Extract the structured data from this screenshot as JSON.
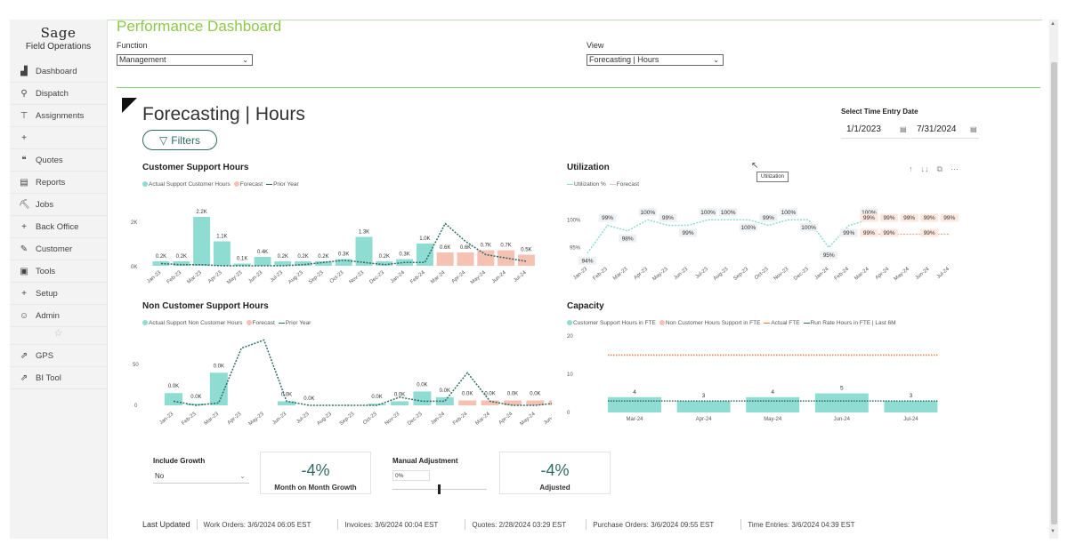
{
  "sidebar": {
    "brand": "Sage",
    "subtitle": "Field Operations",
    "items": [
      {
        "label": "Dashboard",
        "icon": "chart-icon"
      },
      {
        "label": "Dispatch",
        "icon": "pin-icon"
      },
      {
        "label": "Assignments",
        "icon": "thumbtack-icon"
      },
      {
        "label": "",
        "icon": "plus-icon"
      },
      {
        "label": "Quotes",
        "icon": "quote-icon"
      },
      {
        "label": "Reports",
        "icon": "report-icon"
      },
      {
        "label": "Jobs",
        "icon": "jobs-icon"
      },
      {
        "label": "Back Office",
        "icon": "plus-icon"
      },
      {
        "label": "Customer",
        "icon": "customer-icon"
      },
      {
        "label": "Tools",
        "icon": "toolbox-icon"
      },
      {
        "label": "Setup",
        "icon": "plus-icon"
      },
      {
        "label": "Admin",
        "icon": "users-icon"
      }
    ],
    "items2": [
      {
        "label": "GPS",
        "icon": "external-link-icon"
      },
      {
        "label": "BI Tool",
        "icon": "external-link-icon"
      }
    ]
  },
  "header": {
    "title": "Performance Dashboard",
    "function_label": "Function",
    "function_value": "Management",
    "view_label": "View",
    "view_value": "Forecasting | Hours"
  },
  "report": {
    "title": "Forecasting | Hours",
    "filters_label": "Filters",
    "date_label": "Select Time Entry Date",
    "date_start": "1/1/2023",
    "date_end": "7/31/2024",
    "tooltip": "Utilization"
  },
  "charts": {
    "csh": {
      "title": "Customer Support Hours",
      "legend": [
        "Actual Support Customer Hours",
        "Forecast",
        "Prior Year"
      ],
      "y_ticks": [
        "2K",
        "0K"
      ]
    },
    "util": {
      "title": "Utilization",
      "legend": [
        "Utilization %",
        "Forecast"
      ],
      "y_ticks": [
        "100%",
        "95%"
      ]
    },
    "ncsh": {
      "title": "Non Customer Support Hours",
      "legend": [
        "Actual Support Non Customer Hours",
        "Forecast",
        "Prior Year"
      ],
      "y_ticks": [
        "50",
        "0"
      ]
    },
    "cap": {
      "title": "Capacity",
      "legend": [
        "Customer Support Hours in FTE",
        "Non Customer Hours Support in FTE",
        "Actual FTE",
        "Run Rate Hours in FTE | Last 6M"
      ],
      "y_ticks": [
        "20",
        "10",
        "0"
      ]
    }
  },
  "chart_data": [
    {
      "type": "bar",
      "title": "Customer Support Hours",
      "categories": [
        "Jan-23",
        "Feb-23",
        "Mar-23",
        "Apr-23",
        "May-23",
        "Jun-23",
        "Jul-23",
        "Aug-23",
        "Sep-23",
        "Oct-23",
        "Nov-23",
        "Dec-23",
        "Jan-24",
        "Feb-24",
        "Mar-24",
        "Apr-24",
        "May-24",
        "Jun-24",
        "Jul-24"
      ],
      "series": [
        {
          "name": "Actual Support Customer Hours",
          "values": [
            0.2,
            0.2,
            2.2,
            1.1,
            0.1,
            0.4,
            0.2,
            0.2,
            0.2,
            0.3,
            1.3,
            0.2,
            0.3,
            1.0,
            null,
            null,
            null,
            null,
            null
          ],
          "labels": [
            "0.2K",
            "0.2K",
            "2.2K",
            "1.1K",
            "0.1K",
            "0.4K",
            "0.2K",
            "0.2K",
            "0.2K",
            "0.3K",
            "1.3K",
            "0.2K",
            "0.3K",
            "1.0K",
            "",
            "",
            "",
            "",
            ""
          ]
        },
        {
          "name": "Forecast",
          "values": [
            null,
            null,
            null,
            null,
            null,
            null,
            null,
            null,
            null,
            null,
            null,
            null,
            null,
            null,
            0.6,
            0.6,
            0.7,
            0.7,
            0.5
          ],
          "labels": [
            "",
            "",
            "",
            "",
            "",
            "",
            "",
            "",
            "",
            "",
            "",
            "",
            "",
            "",
            "0.6K",
            "0.6K",
            "0.7K",
            "0.7K",
            "0.5K"
          ]
        },
        {
          "name": "Prior Year",
          "values": [
            0.1,
            0.05,
            0.05,
            0.0,
            0.0,
            0.0,
            0.0,
            0.05,
            0.15,
            0.25,
            0.15,
            0.05,
            0.15,
            0.15,
            1.9,
            1.1,
            0.5,
            0.35,
            0.2
          ]
        }
      ],
      "ylim": [
        0,
        2.4
      ]
    },
    {
      "type": "line",
      "title": "Utilization",
      "categories": [
        "Jan-23",
        "Feb-23",
        "Mar-23",
        "Apr-23",
        "May-23",
        "Jun-23",
        "Jul-23",
        "Aug-23",
        "Sep-23",
        "Oct-23",
        "Nov-23",
        "Dec-23",
        "Jan-24",
        "Feb-24",
        "Mar-24",
        "Apr-24",
        "May-24",
        "Jun-24",
        "Jul-24"
      ],
      "series": [
        {
          "name": "Utilization %",
          "values": [
            94,
            99,
            98,
            100,
            99,
            99,
            100,
            100,
            100,
            99,
            100,
            100,
            95,
            99,
            100,
            null,
            null,
            null,
            null
          ],
          "labels": [
            "94%",
            "99%",
            "98%",
            "100%",
            "99%",
            "99%",
            "100%",
            "100%",
            "100%",
            "99%",
            "100%",
            "100%",
            "95%",
            "99%",
            "100%",
            "",
            "",
            "",
            ""
          ]
        },
        {
          "name": "Forecast",
          "values": [
            null,
            null,
            null,
            null,
            null,
            null,
            null,
            null,
            null,
            null,
            null,
            null,
            null,
            null,
            99,
            99,
            99,
            99,
            99
          ],
          "labels": [
            "",
            "",
            "",
            "",
            "",
            "",
            "",
            "",
            "",
            "",
            "",
            "",
            "",
            "",
            "99%",
            "99%",
            "99%",
            "99%",
            "99%"
          ],
          "labels2": [
            "",
            "",
            "",
            "",
            "",
            "",
            "",
            "",
            "",
            "",
            "",
            "",
            "",
            "",
            "99%",
            "99%",
            "",
            "99%",
            ""
          ]
        }
      ],
      "ylim": [
        93,
        101
      ]
    },
    {
      "type": "bar",
      "title": "Non Customer Support Hours",
      "categories": [
        "Jan-23",
        "Feb-23",
        "Mar-23",
        "Apr-23",
        "May-23",
        "Jun-23",
        "Jul-23",
        "Aug-23",
        "Sep-23",
        "Oct-23",
        "Nov-23",
        "Dec-23",
        "Jan-24",
        "Feb-24",
        "Mar-24",
        "Apr-24",
        "May-24",
        "Jun-24",
        "Jul-24"
      ],
      "series": [
        {
          "name": "Actual Support Non Customer Hours",
          "values": [
            15,
            2,
            40,
            0,
            0,
            5,
            0,
            0,
            0,
            2,
            5,
            17,
            10,
            null,
            null,
            null,
            null,
            null,
            null
          ],
          "labels": [
            "0.0K",
            "0.0K",
            "0.0K",
            "",
            "",
            "0.0K",
            "0.0K",
            "",
            "",
            "0.0K",
            "0.0K",
            "0.0K",
            "0.0K",
            "",
            "",
            "",
            "",
            "",
            ""
          ]
        },
        {
          "name": "Forecast",
          "values": [
            null,
            null,
            null,
            null,
            null,
            null,
            null,
            null,
            null,
            null,
            null,
            null,
            null,
            6,
            6,
            6,
            6,
            6,
            6
          ],
          "labels": [
            "",
            "",
            "",
            "",
            "",
            "",
            "",
            "",
            "",
            "",
            "",
            "",
            "",
            "0.0K",
            "0.0K",
            "0.0K",
            "0.0K",
            "0.0K",
            "0.0K"
          ]
        },
        {
          "name": "Prior Year",
          "values": [
            5,
            0,
            3,
            70,
            80,
            5,
            0,
            0,
            0,
            0,
            10,
            5,
            5,
            40,
            5,
            0,
            0,
            3,
            5
          ]
        }
      ],
      "ylim": [
        0,
        85
      ]
    },
    {
      "type": "bar",
      "title": "Capacity",
      "categories": [
        "Mar-24",
        "Apr-24",
        "May-24",
        "Jun-24",
        "Jul-24"
      ],
      "series": [
        {
          "name": "Customer Support Hours in FTE",
          "values": [
            4,
            3,
            4,
            5,
            3
          ],
          "labels": [
            "4",
            "3",
            "4",
            "5",
            "3"
          ]
        },
        {
          "name": "Non Customer Hours Support in FTE",
          "values": [
            0,
            0,
            0,
            0,
            0
          ]
        },
        {
          "name": "Actual FTE",
          "values": [
            15,
            15,
            15,
            15,
            15
          ]
        },
        {
          "name": "Run Rate Hours in FTE | Last 6M",
          "values": [
            3,
            3,
            3,
            3,
            3
          ]
        }
      ],
      "ylim": [
        0,
        20
      ]
    }
  ],
  "bottom": {
    "growth_label": "Include Growth",
    "growth_value": "No",
    "mom_value": "-4%",
    "mom_label": "Month on Month Growth",
    "manual_label": "Manual Adjustment",
    "manual_value": "0%",
    "adjusted_value": "-4%",
    "adjusted_label": "Adjusted"
  },
  "footer": {
    "last_updated": "Last Updated",
    "items": [
      "Work Orders: 3/6/2024 06:05 EST",
      "Invoices: 3/6/2024 00:04 EST",
      "Quotes: 2/28/2024 03:29 EST",
      "Purchase Orders: 3/6/2024 09:55 EST",
      "Time Entries: 3/6/2024 04:39 EST"
    ]
  },
  "colors": {
    "teal": "#8fdcd3",
    "salmon": "#f4c1b2",
    "dark_teal": "#2f6b63",
    "orange": "#e8773a",
    "title_green": "#8cc84b"
  }
}
